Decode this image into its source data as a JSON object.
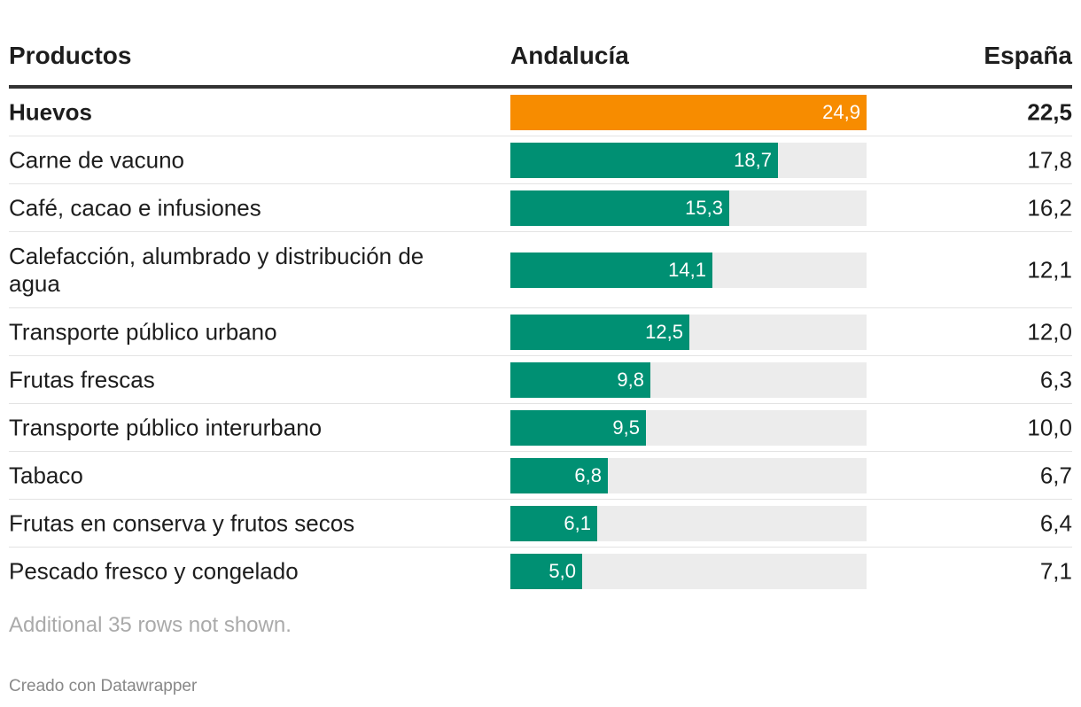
{
  "table": {
    "headers": {
      "product": "Productos",
      "andalucia": "Andalucía",
      "espana": "España"
    },
    "bar_max": 24.9,
    "rows": [
      {
        "name": "Huevos",
        "andalucia": 24.9,
        "andalucia_label": "24,9",
        "espana": "22,5",
        "highlight": true
      },
      {
        "name": "Carne de vacuno",
        "andalucia": 18.7,
        "andalucia_label": "18,7",
        "espana": "17,8",
        "highlight": false
      },
      {
        "name": "Café, cacao e infusiones",
        "andalucia": 15.3,
        "andalucia_label": "15,3",
        "espana": "16,2",
        "highlight": false
      },
      {
        "name": "Calefacción, alumbrado y distribución de agua",
        "andalucia": 14.1,
        "andalucia_label": "14,1",
        "espana": "12,1",
        "highlight": false
      },
      {
        "name": "Transporte público urbano",
        "andalucia": 12.5,
        "andalucia_label": "12,5",
        "espana": "12,0",
        "highlight": false
      },
      {
        "name": "Frutas frescas",
        "andalucia": 9.8,
        "andalucia_label": "9,8",
        "espana": "6,3",
        "highlight": false
      },
      {
        "name": "Transporte público interurbano",
        "andalucia": 9.5,
        "andalucia_label": "9,5",
        "espana": "10,0",
        "highlight": false
      },
      {
        "name": "Tabaco",
        "andalucia": 6.8,
        "andalucia_label": "6,8",
        "espana": "6,7",
        "highlight": false
      },
      {
        "name": "Frutas en conserva y frutos secos",
        "andalucia": 6.1,
        "andalucia_label": "6,1",
        "espana": "6,4",
        "highlight": false
      },
      {
        "name": "Pescado fresco y congelado",
        "andalucia": 5.0,
        "andalucia_label": "5,0",
        "espana": "7,1",
        "highlight": false
      }
    ]
  },
  "colors": {
    "highlight_bar": "#f78c00",
    "bar": "#009073",
    "track": "#ececec"
  },
  "footer": {
    "note": "Additional 35 rows not shown.",
    "credit": "Creado con Datawrapper"
  },
  "chart_data": {
    "type": "table",
    "title": "",
    "columns": [
      "Productos",
      "Andalucía",
      "España"
    ],
    "categories": [
      "Huevos",
      "Carne de vacuno",
      "Café, cacao e infusiones",
      "Calefacción, alumbrado y distribución de agua",
      "Transporte público urbano",
      "Frutas frescas",
      "Transporte público interurbano",
      "Tabaco",
      "Frutas en conserva y frutos secos",
      "Pescado fresco y congelado"
    ],
    "series": [
      {
        "name": "Andalucía",
        "values": [
          24.9,
          18.7,
          15.3,
          14.1,
          12.5,
          9.8,
          9.5,
          6.8,
          6.1,
          5.0
        ]
      },
      {
        "name": "España",
        "values": [
          22.5,
          17.8,
          16.2,
          12.1,
          12.0,
          6.3,
          10.0,
          6.7,
          6.4,
          7.1
        ]
      }
    ]
  }
}
